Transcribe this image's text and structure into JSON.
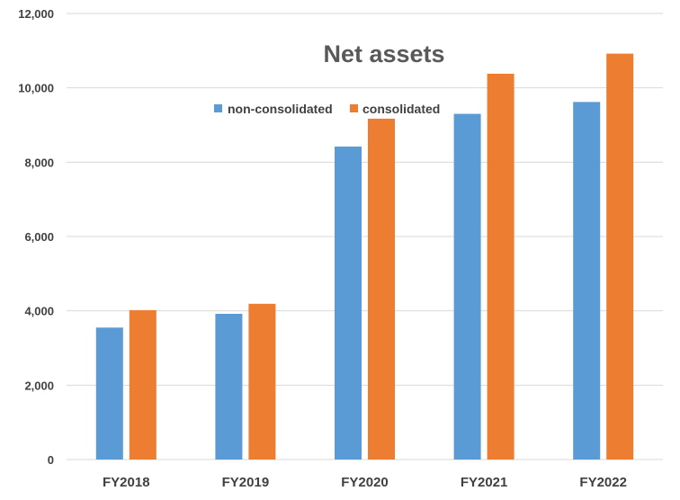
{
  "chart_data": {
    "type": "bar",
    "title": "Net assets",
    "xlabel": "",
    "ylabel": "",
    "categories": [
      "FY2018",
      "FY2019",
      "FY2020",
      "FY2021",
      "FY2022"
    ],
    "series": [
      {
        "name": "non-consolidated",
        "color": "#5B9BD5",
        "values": [
          3550,
          3920,
          8420,
          9300,
          9620
        ]
      },
      {
        "name": "consolidated",
        "color": "#ED7D31",
        "values": [
          4020,
          4190,
          9170,
          10380,
          10920
        ]
      }
    ],
    "ylim": [
      0,
      12000
    ],
    "yticks": [
      0,
      2000,
      4000,
      6000,
      8000,
      10000,
      12000
    ],
    "ytick_labels": [
      "0",
      "2,000",
      "4,000",
      "6,000",
      "8,000",
      "10,000",
      "12,000"
    ],
    "grid": true,
    "gridline_color": "#D9D9D9",
    "legend_position": "inside-top-center"
  }
}
